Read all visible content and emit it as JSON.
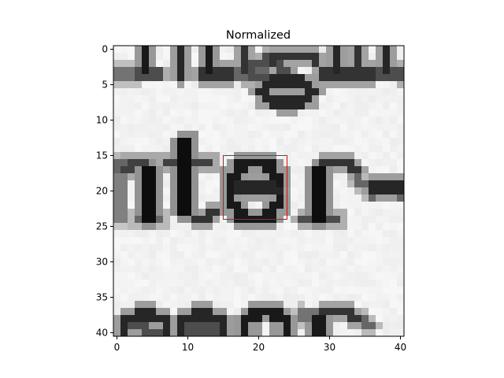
{
  "chart_data": {
    "type": "heatmap",
    "title": "Normalized",
    "colormap": "gray",
    "grid": false,
    "rows": 41,
    "cols": 41,
    "xlim": [
      -0.5,
      40.5
    ],
    "ylim": [
      40.5,
      -0.5
    ],
    "x_ticks": [
      0,
      10,
      20,
      30,
      40
    ],
    "x_tick_labels": [
      "0",
      "10",
      "20",
      "30",
      "40"
    ],
    "y_ticks": [
      0,
      5,
      10,
      15,
      20,
      25,
      30,
      35,
      40
    ],
    "y_tick_labels": [
      "0",
      "5",
      "10",
      "15",
      "20",
      "25",
      "30",
      "35",
      "40"
    ],
    "highlight_box": {
      "x0": 15,
      "y0": 15,
      "x1": 24,
      "y1": 24,
      "color": "#ff0000"
    },
    "content": "Grayscale crop of printed text: the bottoms of letters from a line above (rows 0-4), the fragment 'nter-' across the middle (rows 15-24) with the letter 'e' enclosed by the red box, and the tops of letters 'seor' along the bottom (rows 37-40)."
  }
}
